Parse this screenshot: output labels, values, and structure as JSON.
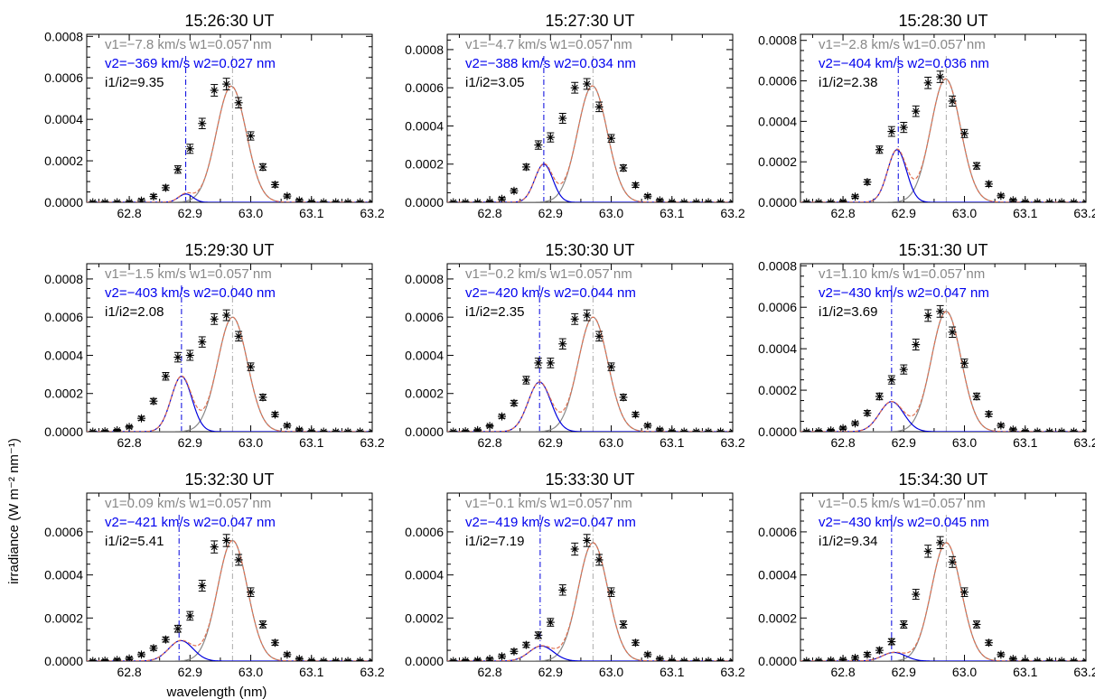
{
  "figure": {
    "xlabel": "wavelength (nm)",
    "ylabel": "irradiance (W m⁻² nm⁻¹)",
    "colors": {
      "data": "#000000",
      "total_fit": "#e07050",
      "component1": "#888888",
      "component2": "#0000dd",
      "annotation1": "#888888",
      "annotation2": "#0000ee",
      "annotation3": "#000000"
    }
  },
  "chart_data": [
    {
      "type": "line",
      "title": "15:26:30 UT",
      "xlim": [
        62.73,
        63.2
      ],
      "ylim": [
        0,
        0.00081
      ],
      "x_ticks": [
        "62.8",
        "62.9",
        "63.0",
        "63.1",
        "63.2"
      ],
      "y_ticks": [
        "0.0000",
        "0.0002",
        "0.0004",
        "0.0006",
        "0.0008"
      ],
      "annotations": [
        "v1=−7.8 km/s w1=0.057 nm",
        "v2=−369 km/s w2=0.027 nm",
        "i1/i2=9.35"
      ],
      "line1_center": 62.97,
      "line2_center": 62.893,
      "component1": {
        "amplitude": 0.00056,
        "center": 62.968,
        "sigma": 0.0245
      },
      "component2": {
        "amplitude": 4e-05,
        "center": 62.893,
        "sigma": 0.0118
      },
      "x": [
        62.74,
        62.76,
        62.78,
        62.8,
        62.82,
        62.84,
        62.86,
        62.88,
        62.9,
        62.92,
        62.94,
        62.96,
        62.98,
        63.0,
        63.02,
        63.04,
        63.06,
        63.08,
        63.1,
        63.12,
        63.14,
        63.16,
        63.18,
        63.2
      ],
      "y": [
        0,
        0,
        0,
        1e-06,
        8e-06,
        2.8e-05,
        7e-05,
        0.000158,
        0.000258,
        0.00038,
        0.00054,
        0.00057,
        0.00048,
        0.00032,
        0.00017,
        8.5e-05,
        3e-05,
        9e-06,
        2e-06,
        0,
        0,
        0,
        0,
        0
      ],
      "errors": [
        4e-06,
        4e-06,
        4e-06,
        4e-06,
        8e-06,
        1e-05,
        1.2e-05,
        1.8e-05,
        2.2e-05,
        2.5e-05,
        2.8e-05,
        2.8e-05,
        2.5e-05,
        2e-05,
        1.6e-05,
        1.2e-05,
        8e-06,
        6e-06,
        4e-06,
        4e-06,
        4e-06,
        4e-06,
        4e-06,
        4e-06
      ]
    },
    {
      "type": "line",
      "title": "15:27:30 UT",
      "xlim": [
        62.73,
        63.2
      ],
      "ylim": [
        0,
        0.00088
      ],
      "x_ticks": [
        "62.8",
        "62.9",
        "63.0",
        "63.1",
        "63.2"
      ],
      "y_ticks": [
        "0.0000",
        "0.0002",
        "0.0004",
        "0.0006",
        "0.0008"
      ],
      "annotations": [
        "v1=−4.7 km/s w1=0.057 nm",
        "v2=−388 km/s w2=0.034 nm",
        "i1/i2=3.05"
      ],
      "line1_center": 62.97,
      "line2_center": 62.889,
      "component1": {
        "amplitude": 0.00061,
        "center": 62.969,
        "sigma": 0.0245
      },
      "component2": {
        "amplitude": 0.0002,
        "center": 62.889,
        "sigma": 0.0148
      },
      "x": [
        62.74,
        62.76,
        62.78,
        62.8,
        62.82,
        62.84,
        62.86,
        62.88,
        62.9,
        62.92,
        62.94,
        62.96,
        62.98,
        63.0,
        63.02,
        63.04,
        63.06,
        63.08,
        63.1,
        63.12,
        63.14,
        63.16,
        63.18,
        63.2
      ],
      "y": [
        0,
        0,
        0,
        3e-06,
        1.8e-05,
        6e-05,
        0.000185,
        0.0003,
        0.00034,
        0.00044,
        0.0006,
        0.00062,
        0.0005,
        0.000335,
        0.00018,
        9e-05,
        3.2e-05,
        1e-05,
        2e-06,
        0,
        0,
        0,
        0,
        0
      ],
      "errors": [
        4e-06,
        4e-06,
        4e-06,
        5e-06,
        8e-06,
        1e-05,
        1.5e-05,
        2.2e-05,
        2.4e-05,
        2.6e-05,
        2.8e-05,
        2.8e-05,
        2.5e-05,
        2e-05,
        1.6e-05,
        1.2e-05,
        8e-06,
        6e-06,
        4e-06,
        4e-06,
        4e-06,
        4e-06,
        4e-06,
        4e-06
      ]
    },
    {
      "type": "line",
      "title": "15:28:30 UT",
      "xlim": [
        62.73,
        63.2
      ],
      "ylim": [
        0,
        0.00083
      ],
      "x_ticks": [
        "62.8",
        "62.9",
        "63.0",
        "63.1",
        "63.2"
      ],
      "y_ticks": [
        "0.0000",
        "0.0002",
        "0.0004",
        "0.0006",
        "0.0008"
      ],
      "annotations": [
        "v1=−2.8 km/s w1=0.057 nm",
        "v2=−404 km/s w2=0.036 nm",
        "i1/i2=2.38"
      ],
      "line1_center": 62.97,
      "line2_center": 62.891,
      "component1": {
        "amplitude": 0.00061,
        "center": 62.969,
        "sigma": 0.0245
      },
      "component2": {
        "amplitude": 0.00026,
        "center": 62.889,
        "sigma": 0.0155
      },
      "x": [
        62.74,
        62.76,
        62.78,
        62.8,
        62.82,
        62.84,
        62.86,
        62.88,
        62.9,
        62.92,
        62.94,
        62.96,
        62.98,
        63.0,
        63.02,
        63.04,
        63.06,
        63.08,
        63.1,
        63.12,
        63.14,
        63.16,
        63.18,
        63.2
      ],
      "y": [
        0,
        0,
        0,
        4e-06,
        2.8e-05,
        0.0001,
        0.00026,
        0.00035,
        0.00037,
        0.00045,
        0.00059,
        0.00062,
        0.0005,
        0.00034,
        0.00018,
        9e-05,
        3.2e-05,
        1e-05,
        2e-06,
        0,
        0,
        0,
        0,
        0
      ],
      "errors": [
        4e-06,
        4e-06,
        4e-06,
        5e-06,
        8e-06,
        1.2e-05,
        1.8e-05,
        2.4e-05,
        2.5e-05,
        2.6e-05,
        2.8e-05,
        2.8e-05,
        2.5e-05,
        2e-05,
        1.6e-05,
        1.2e-05,
        8e-06,
        6e-06,
        4e-06,
        4e-06,
        4e-06,
        4e-06,
        4e-06,
        4e-06
      ]
    },
    {
      "type": "line",
      "title": "15:29:30 UT",
      "xlim": [
        62.73,
        63.2
      ],
      "ylim": [
        0,
        0.00088
      ],
      "x_ticks": [
        "62.8",
        "62.9",
        "63.0",
        "63.1",
        "63.2"
      ],
      "y_ticks": [
        "0.0000",
        "0.0002",
        "0.0004",
        "0.0006",
        "0.0008"
      ],
      "annotations": [
        "v1=−1.5 km/s w1=0.057 nm",
        "v2=−403 km/s w2=0.040 nm",
        "i1/i2=2.08"
      ],
      "line1_center": 62.97,
      "line2_center": 62.886,
      "component1": {
        "amplitude": 0.0006,
        "center": 62.97,
        "sigma": 0.0245
      },
      "component2": {
        "amplitude": 0.00029,
        "center": 62.886,
        "sigma": 0.017
      },
      "x": [
        62.74,
        62.76,
        62.78,
        62.8,
        62.82,
        62.84,
        62.86,
        62.88,
        62.9,
        62.92,
        62.94,
        62.96,
        62.98,
        63.0,
        63.02,
        63.04,
        63.06,
        63.08,
        63.1,
        63.12,
        63.14,
        63.16,
        63.18,
        63.2
      ],
      "y": [
        0,
        2e-06,
        7e-06,
        2.5e-05,
        7e-05,
        0.00016,
        0.00029,
        0.00039,
        0.0004,
        0.00047,
        0.00059,
        0.00061,
        0.0005,
        0.00034,
        0.00018,
        9e-05,
        3.2e-05,
        1e-05,
        2e-06,
        0,
        0,
        0,
        0,
        0
      ],
      "errors": [
        4e-06,
        4e-06,
        5e-06,
        6e-06,
        1e-05,
        1.4e-05,
        2e-05,
        2.5e-05,
        2.6e-05,
        2.7e-05,
        2.8e-05,
        2.8e-05,
        2.5e-05,
        2e-05,
        1.6e-05,
        1.2e-05,
        8e-06,
        6e-06,
        4e-06,
        4e-06,
        4e-06,
        4e-06,
        4e-06,
        4e-06
      ]
    },
    {
      "type": "line",
      "title": "15:30:30 UT",
      "xlim": [
        62.73,
        63.2
      ],
      "ylim": [
        0,
        0.00088
      ],
      "x_ticks": [
        "62.8",
        "62.9",
        "63.0",
        "63.1",
        "63.2"
      ],
      "y_ticks": [
        "0.0000",
        "0.0002",
        "0.0004",
        "0.0006",
        "0.0008"
      ],
      "annotations": [
        "v1=−0.2 km/s w1=0.057 nm",
        "v2=−420 km/s w2=0.044 nm",
        "i1/i2=2.35"
      ],
      "line1_center": 62.97,
      "line2_center": 62.882,
      "component1": {
        "amplitude": 0.0006,
        "center": 62.97,
        "sigma": 0.0245
      },
      "component2": {
        "amplitude": 0.00026,
        "center": 62.882,
        "sigma": 0.0187
      },
      "x": [
        62.74,
        62.76,
        62.78,
        62.8,
        62.82,
        62.84,
        62.86,
        62.88,
        62.9,
        62.92,
        62.94,
        62.96,
        62.98,
        63.0,
        63.02,
        63.04,
        63.06,
        63.08,
        63.1,
        63.12,
        63.14,
        63.16,
        63.18,
        63.2
      ],
      "y": [
        0,
        2e-06,
        8e-06,
        3e-05,
        8e-05,
        0.00015,
        0.00027,
        0.00036,
        0.00036,
        0.00046,
        0.00059,
        0.00061,
        0.0005,
        0.00034,
        0.00018,
        9e-05,
        3.2e-05,
        1e-05,
        2e-06,
        0,
        0,
        0,
        0,
        0
      ],
      "errors": [
        4e-06,
        4e-06,
        5e-06,
        6e-06,
        1e-05,
        1.4e-05,
        2e-05,
        2.5e-05,
        2.5e-05,
        2.7e-05,
        2.8e-05,
        2.8e-05,
        2.5e-05,
        2e-05,
        1.6e-05,
        1.2e-05,
        8e-06,
        6e-06,
        4e-06,
        4e-06,
        4e-06,
        4e-06,
        4e-06,
        4e-06
      ]
    },
    {
      "type": "line",
      "title": "15:31:30 UT",
      "xlim": [
        62.73,
        63.2
      ],
      "ylim": [
        0,
        0.00081
      ],
      "x_ticks": [
        "62.8",
        "62.9",
        "63.0",
        "63.1",
        "63.2"
      ],
      "y_ticks": [
        "0.0000",
        "0.0002",
        "0.0004",
        "0.0006",
        "0.0008"
      ],
      "annotations": [
        "v1=1.10 km/s w1=0.057 nm",
        "v2=−430 km/s w2=0.047 nm",
        "i1/i2=3.69"
      ],
      "line1_center": 62.97,
      "line2_center": 62.88,
      "component1": {
        "amplitude": 0.00058,
        "center": 62.97,
        "sigma": 0.0245
      },
      "component2": {
        "amplitude": 0.000145,
        "center": 62.88,
        "sigma": 0.02
      },
      "x": [
        62.74,
        62.76,
        62.78,
        62.8,
        62.82,
        62.84,
        62.86,
        62.88,
        62.9,
        62.92,
        62.94,
        62.96,
        62.98,
        63.0,
        63.02,
        63.04,
        63.06,
        63.08,
        63.1,
        63.12,
        63.14,
        63.16,
        63.18,
        63.2
      ],
      "y": [
        0,
        2e-06,
        6e-06,
        1.7e-05,
        4e-05,
        9e-05,
        0.00017,
        0.00025,
        0.0003,
        0.00042,
        0.00056,
        0.00058,
        0.00048,
        0.00033,
        0.00017,
        8.5e-05,
        3e-05,
        1e-05,
        2e-06,
        0,
        0,
        0,
        0,
        0
      ],
      "errors": [
        4e-06,
        4e-06,
        5e-06,
        6e-06,
        8e-06,
        1.2e-05,
        1.6e-05,
        2e-05,
        2.2e-05,
        2.6e-05,
        2.8e-05,
        2.8e-05,
        2.5e-05,
        2e-05,
        1.6e-05,
        1.2e-05,
        8e-06,
        6e-06,
        4e-06,
        4e-06,
        4e-06,
        4e-06,
        4e-06,
        4e-06
      ]
    },
    {
      "type": "line",
      "title": "15:32:30 UT",
      "xlim": [
        62.73,
        63.2
      ],
      "ylim": [
        0,
        0.00078
      ],
      "x_ticks": [
        "62.8",
        "62.9",
        "63.0",
        "63.1",
        "63.2"
      ],
      "y_ticks": [
        "0.0000",
        "0.0002",
        "0.0004",
        "0.0006"
      ],
      "annotations": [
        "v1=0.09 km/s w1=0.057 nm",
        "v2=−421 km/s w2=0.047 nm",
        "i1/i2=5.41"
      ],
      "line1_center": 62.97,
      "line2_center": 62.882,
      "component1": {
        "amplitude": 0.00056,
        "center": 62.97,
        "sigma": 0.0245
      },
      "component2": {
        "amplitude": 9.5e-05,
        "center": 62.885,
        "sigma": 0.02
      },
      "x": [
        62.74,
        62.76,
        62.78,
        62.8,
        62.82,
        62.84,
        62.86,
        62.88,
        62.9,
        62.92,
        62.94,
        62.96,
        62.98,
        63.0,
        63.02,
        63.04,
        63.06,
        63.08,
        63.1,
        63.12,
        63.14,
        63.16,
        63.18,
        63.2
      ],
      "y": [
        0,
        2e-06,
        5e-06,
        1.2e-05,
        3e-05,
        6e-05,
        0.0001,
        0.00015,
        0.00021,
        0.00035,
        0.00053,
        0.00056,
        0.00047,
        0.00032,
        0.00017,
        8.5e-05,
        3e-05,
        1e-05,
        2e-06,
        0,
        0,
        0,
        0,
        0
      ],
      "errors": [
        4e-06,
        4e-06,
        5e-06,
        6e-06,
        8e-06,
        1e-05,
        1.2e-05,
        1.6e-05,
        2e-05,
        2.5e-05,
        2.8e-05,
        2.8e-05,
        2.5e-05,
        2e-05,
        1.6e-05,
        1.2e-05,
        8e-06,
        6e-06,
        4e-06,
        4e-06,
        4e-06,
        4e-06,
        4e-06,
        4e-06
      ]
    },
    {
      "type": "line",
      "title": "15:33:30 UT",
      "xlim": [
        62.73,
        63.2
      ],
      "ylim": [
        0,
        0.00078
      ],
      "x_ticks": [
        "62.8",
        "62.9",
        "63.0",
        "63.1",
        "63.2"
      ],
      "y_ticks": [
        "0.0000",
        "0.0002",
        "0.0004",
        "0.0006"
      ],
      "annotations": [
        "v1=−0.1 km/s w1=0.057 nm",
        "v2=−419 km/s w2=0.047 nm",
        "i1/i2=7.19"
      ],
      "line1_center": 62.97,
      "line2_center": 62.883,
      "component1": {
        "amplitude": 0.00055,
        "center": 62.97,
        "sigma": 0.0245
      },
      "component2": {
        "amplitude": 7e-05,
        "center": 62.885,
        "sigma": 0.02
      },
      "x": [
        62.74,
        62.76,
        62.78,
        62.8,
        62.82,
        62.84,
        62.86,
        62.88,
        62.9,
        62.92,
        62.94,
        62.96,
        62.98,
        63.0,
        63.02,
        63.04,
        63.06,
        63.08,
        63.1,
        63.12,
        63.14,
        63.16,
        63.18,
        63.2
      ],
      "y": [
        0,
        2e-06,
        4e-06,
        9e-06,
        2.2e-05,
        4.5e-05,
        7.5e-05,
        0.00012,
        0.00018,
        0.00033,
        0.00052,
        0.00056,
        0.00047,
        0.00032,
        0.00017,
        8.5e-05,
        3e-05,
        1e-05,
        2e-06,
        0,
        0,
        0,
        0,
        0
      ],
      "errors": [
        4e-06,
        4e-06,
        5e-06,
        6e-06,
        8e-06,
        1e-05,
        1.2e-05,
        1.5e-05,
        1.8e-05,
        2.4e-05,
        2.8e-05,
        2.8e-05,
        2.5e-05,
        2e-05,
        1.6e-05,
        1.2e-05,
        8e-06,
        6e-06,
        4e-06,
        4e-06,
        4e-06,
        4e-06,
        4e-06,
        4e-06
      ]
    },
    {
      "type": "line",
      "title": "15:34:30 UT",
      "xlim": [
        62.73,
        63.2
      ],
      "ylim": [
        0,
        0.00078
      ],
      "x_ticks": [
        "62.8",
        "62.9",
        "63.0",
        "63.1",
        "63.2"
      ],
      "y_ticks": [
        "0.0000",
        "0.0002",
        "0.0004",
        "0.0006"
      ],
      "annotations": [
        "v1=−0.5 km/s w1=0.057 nm",
        "v2=−430 km/s w2=0.045 nm",
        "i1/i2=9.34"
      ],
      "line1_center": 62.97,
      "line2_center": 62.88,
      "component1": {
        "amplitude": 0.00055,
        "center": 62.97,
        "sigma": 0.0245
      },
      "component2": {
        "amplitude": 4e-05,
        "center": 62.884,
        "sigma": 0.019
      },
      "x": [
        62.74,
        62.76,
        62.78,
        62.8,
        62.82,
        62.84,
        62.86,
        62.88,
        62.9,
        62.92,
        62.94,
        62.96,
        62.98,
        63.0,
        63.02,
        63.04,
        63.06,
        63.08,
        63.1,
        63.12,
        63.14,
        63.16,
        63.18,
        63.2
      ],
      "y": [
        0,
        1e-06,
        3e-06,
        6e-06,
        1.5e-05,
        3e-05,
        5e-05,
        9e-05,
        0.00017,
        0.00031,
        0.00051,
        0.00055,
        0.00046,
        0.00032,
        0.00017,
        8.5e-05,
        3e-05,
        1e-05,
        2e-06,
        0,
        0,
        0,
        0,
        0
      ],
      "errors": [
        4e-06,
        4e-06,
        5e-06,
        6e-06,
        8e-06,
        1e-05,
        1.2e-05,
        1.4e-05,
        1.7e-05,
        2.3e-05,
        2.8e-05,
        2.8e-05,
        2.5e-05,
        2e-05,
        1.6e-05,
        1.2e-05,
        8e-06,
        6e-06,
        4e-06,
        4e-06,
        4e-06,
        4e-06,
        4e-06,
        4e-06
      ]
    }
  ]
}
